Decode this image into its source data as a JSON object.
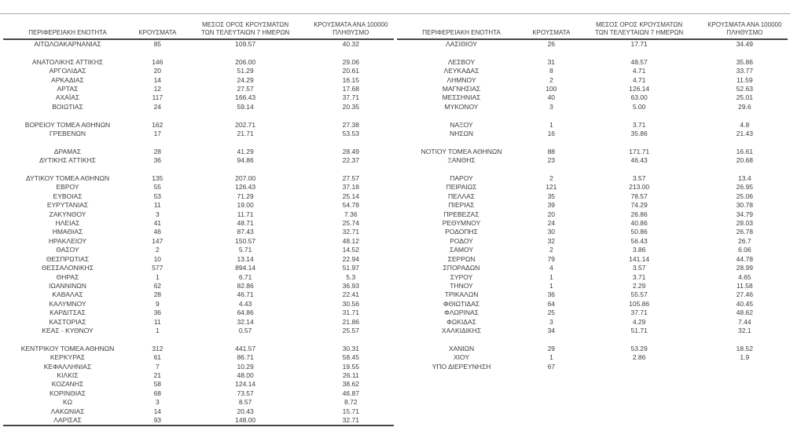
{
  "page": {
    "background": "#ffffff",
    "text_color": "#3d3d3d",
    "rule_color": "#454545",
    "top_rule_color": "#a6a6a6"
  },
  "columns": [
    {
      "key": "region",
      "label": "ΠΕΡΙΦΕΡΕΙΑΚΗ ΕΝΟΤΗΤΑ"
    },
    {
      "key": "cases",
      "label": "ΚΡΟΥΣΜΑΤΑ"
    },
    {
      "key": "avg7",
      "label": "ΜΕΣΟΣ ΟΡΟΣ ΚΡΟΥΣΜΑΤΩΝ\nΤΩΝ ΤΕΛΕΥΤΑΙΩΝ 7 ΗΜΕΡΩΝ"
    },
    {
      "key": "per100k",
      "label": "ΚΡΟΥΣΜΑΤΑ ΑΝΑ 100000\nΠΛΗΘΥΣΜΟ"
    }
  ],
  "tables": [
    {
      "rows": [
        {
          "name": "ΑΙΤΩΛΟΑΚΑΡΝΑΝΙΑΣ",
          "cases": "85",
          "avg7": "109.57",
          "per100k": "40.32",
          "spacer_after": true
        },
        {
          "name": "ΑΝΑΤΟΛΙΚΗΣ ΑΤΤΙΚΗΣ",
          "cases": "146",
          "avg7": "206.00",
          "per100k": "29.06",
          "spacer_after": false
        },
        {
          "name": "ΑΡΓΟΛΙΔΑΣ",
          "cases": "20",
          "avg7": "51.29",
          "per100k": "20.61",
          "spacer_after": false
        },
        {
          "name": "ΑΡΚΑΔΙΑΣ",
          "cases": "14",
          "avg7": "24.29",
          "per100k": "16.15",
          "spacer_after": false
        },
        {
          "name": "ΑΡΤΑΣ",
          "cases": "12",
          "avg7": "27.57",
          "per100k": "17.68",
          "spacer_after": false
        },
        {
          "name": "ΑΧΑΪΑΣ",
          "cases": "117",
          "avg7": "166.43",
          "per100k": "37.71",
          "spacer_after": false
        },
        {
          "name": "ΒΟΙΩΤΙΑΣ",
          "cases": "24",
          "avg7": "59.14",
          "per100k": "20.35",
          "spacer_after": true
        },
        {
          "name": "ΒΟΡΕΙΟΥ ΤΟΜΕΑ ΑΘΗΝΩΝ",
          "cases": "162",
          "avg7": "202.71",
          "per100k": "27.38",
          "spacer_after": false
        },
        {
          "name": "ΓΡΕΒΕΝΩΝ",
          "cases": "17",
          "avg7": "21.71",
          "per100k": "53.53",
          "spacer_after": true
        },
        {
          "name": "ΔΡΑΜΑΣ",
          "cases": "28",
          "avg7": "41.29",
          "per100k": "28.49",
          "spacer_after": false
        },
        {
          "name": "ΔΥΤΙΚΗΣ ΑΤΤΙΚΗΣ",
          "cases": "36",
          "avg7": "94.86",
          "per100k": "22.37",
          "spacer_after": true
        },
        {
          "name": "ΔΥΤΙΚΟΥ ΤΟΜΕΑ ΑΘΗΝΩΝ",
          "cases": "135",
          "avg7": "207.00",
          "per100k": "27.57",
          "spacer_after": false
        },
        {
          "name": "ΕΒΡΟΥ",
          "cases": "55",
          "avg7": "126.43",
          "per100k": "37.18",
          "spacer_after": false
        },
        {
          "name": "ΕΥΒΟΙΑΣ",
          "cases": "53",
          "avg7": "71.29",
          "per100k": "25.14",
          "spacer_after": false
        },
        {
          "name": "ΕΥΡΥΤΑΝΙΑΣ",
          "cases": "11",
          "avg7": "19.00",
          "per100k": "54.78",
          "spacer_after": false
        },
        {
          "name": "ΖΑΚΥΝΘΟΥ",
          "cases": "3",
          "avg7": "11.71",
          "per100k": "7.36",
          "spacer_after": false
        },
        {
          "name": "ΗΛΕΙΑΣ",
          "cases": "41",
          "avg7": "48.71",
          "per100k": "25.74",
          "spacer_after": false
        },
        {
          "name": "ΗΜΑΘΙΑΣ",
          "cases": "46",
          "avg7": "87.43",
          "per100k": "32.71",
          "spacer_after": false
        },
        {
          "name": "ΗΡΑΚΛΕΙΟΥ",
          "cases": "147",
          "avg7": "150.57",
          "per100k": "48.12",
          "spacer_after": false
        },
        {
          "name": "ΘΑΣΟΥ",
          "cases": "2",
          "avg7": "5.71",
          "per100k": "14.52",
          "spacer_after": false
        },
        {
          "name": "ΘΕΣΠΡΩΤΙΑΣ",
          "cases": "10",
          "avg7": "13.14",
          "per100k": "22.94",
          "spacer_after": false
        },
        {
          "name": "ΘΕΣΣΑΛΟΝΙΚΗΣ",
          "cases": "577",
          "avg7": "894.14",
          "per100k": "51.97",
          "spacer_after": false
        },
        {
          "name": "ΘΗΡΑΣ",
          "cases": "1",
          "avg7": "6.71",
          "per100k": "5.3",
          "spacer_after": false
        },
        {
          "name": "ΙΩΑΝΝΙΝΩΝ",
          "cases": "62",
          "avg7": "82.86",
          "per100k": "36.93",
          "spacer_after": false
        },
        {
          "name": "ΚΑΒΑΛΑΣ",
          "cases": "28",
          "avg7": "46.71",
          "per100k": "22.41",
          "spacer_after": false
        },
        {
          "name": "ΚΑΛΥΜΝΟΥ",
          "cases": "9",
          "avg7": "4.43",
          "per100k": "30.56",
          "spacer_after": false
        },
        {
          "name": "ΚΑΡΔΙΤΣΑΣ",
          "cases": "36",
          "avg7": "64.86",
          "per100k": "31.71",
          "spacer_after": false
        },
        {
          "name": "ΚΑΣΤΟΡΙΑΣ",
          "cases": "11",
          "avg7": "32.14",
          "per100k": "21.86",
          "spacer_after": false
        },
        {
          "name": "ΚΕΑΣ - ΚΥΘΝΟΥ",
          "cases": "1",
          "avg7": "0.57",
          "per100k": "25.57",
          "spacer_after": true
        },
        {
          "name": "ΚΕΝΤΡΙΚΟΥ ΤΟΜΕΑ ΑΘΗΝΩΝ",
          "cases": "312",
          "avg7": "441.57",
          "per100k": "30.31",
          "spacer_after": false
        },
        {
          "name": "ΚΕΡΚΥΡΑΣ",
          "cases": "61",
          "avg7": "86.71",
          "per100k": "58.45",
          "spacer_after": false
        },
        {
          "name": "ΚΕΦΑΛΛΗΝΙΑΣ",
          "cases": "7",
          "avg7": "10.29",
          "per100k": "19.55",
          "spacer_after": false
        },
        {
          "name": "ΚΙΛΚΙΣ",
          "cases": "21",
          "avg7": "48.00",
          "per100k": "26.11",
          "spacer_after": false
        },
        {
          "name": "ΚΟΖΑΝΗΣ",
          "cases": "58",
          "avg7": "124.14",
          "per100k": "38.62",
          "spacer_after": false
        },
        {
          "name": "ΚΟΡΙΝΘΙΑΣ",
          "cases": "68",
          "avg7": "73.57",
          "per100k": "46.87",
          "spacer_after": false
        },
        {
          "name": "ΚΩ",
          "cases": "3",
          "avg7": "8.57",
          "per100k": "8.72",
          "spacer_after": false
        },
        {
          "name": "ΛΑΚΩΝΙΑΣ",
          "cases": "14",
          "avg7": "20.43",
          "per100k": "15.71",
          "spacer_after": false
        },
        {
          "name": "ΛΑΡΙΣΑΣ",
          "cases": "93",
          "avg7": "148.00",
          "per100k": "32.71",
          "spacer_after": false
        }
      ]
    },
    {
      "rows": [
        {
          "name": "ΛΑΣΙΘΙΟΥ",
          "cases": "26",
          "avg7": "17.71",
          "per100k": "34.49",
          "spacer_after": true
        },
        {
          "name": "ΛΕΣΒΟΥ",
          "cases": "31",
          "avg7": "48.57",
          "per100k": "35.86",
          "spacer_after": false
        },
        {
          "name": "ΛΕΥΚΑΔΑΣ",
          "cases": "8",
          "avg7": "4.71",
          "per100k": "33.77",
          "spacer_after": false
        },
        {
          "name": "ΛΗΜΝΟΥ",
          "cases": "2",
          "avg7": "4.71",
          "per100k": "11.59",
          "spacer_after": false
        },
        {
          "name": "ΜΑΓΝΗΣΙΑΣ",
          "cases": "100",
          "avg7": "126.14",
          "per100k": "52.63",
          "spacer_after": false
        },
        {
          "name": "ΜΕΣΣΗΝΙΑΣ",
          "cases": "40",
          "avg7": "63.00",
          "per100k": "25.01",
          "spacer_after": false
        },
        {
          "name": "ΜΥΚΟΝΟΥ",
          "cases": "3",
          "avg7": "5.00",
          "per100k": "29.6",
          "spacer_after": true
        },
        {
          "name": "ΝΑΞΟΥ",
          "cases": "1",
          "avg7": "3.71",
          "per100k": "4.8",
          "spacer_after": false
        },
        {
          "name": "ΝΗΣΩΝ",
          "cases": "16",
          "avg7": "35.86",
          "per100k": "21.43",
          "spacer_after": true
        },
        {
          "name": "ΝΟΤΙΟΥ ΤΟΜΕΑ ΑΘΗΝΩΝ",
          "cases": "88",
          "avg7": "171.71",
          "per100k": "16.61",
          "spacer_after": false
        },
        {
          "name": "ΞΑΝΘΗΣ",
          "cases": "23",
          "avg7": "46.43",
          "per100k": "20.68",
          "spacer_after": true
        },
        {
          "name": "ΠΑΡΟΥ",
          "cases": "2",
          "avg7": "3.57",
          "per100k": "13.4",
          "spacer_after": false
        },
        {
          "name": "ΠΕΙΡΑΙΩΣ",
          "cases": "121",
          "avg7": "213.00",
          "per100k": "26.95",
          "spacer_after": false
        },
        {
          "name": "ΠΕΛΛΑΣ",
          "cases": "35",
          "avg7": "78.57",
          "per100k": "25.06",
          "spacer_after": false
        },
        {
          "name": "ΠΙΕΡΙΑΣ",
          "cases": "39",
          "avg7": "74.29",
          "per100k": "30.78",
          "spacer_after": false
        },
        {
          "name": "ΠΡΕΒΕΖΑΣ",
          "cases": "20",
          "avg7": "26.86",
          "per100k": "34.79",
          "spacer_after": false
        },
        {
          "name": "ΡΕΘΥΜΝΟΥ",
          "cases": "24",
          "avg7": "40.86",
          "per100k": "28.03",
          "spacer_after": false
        },
        {
          "name": "ΡΟΔΟΠΗΣ",
          "cases": "30",
          "avg7": "50.86",
          "per100k": "26.78",
          "spacer_after": false
        },
        {
          "name": "ΡΟΔΟΥ",
          "cases": "32",
          "avg7": "56.43",
          "per100k": "26.7",
          "spacer_after": false
        },
        {
          "name": "ΣΑΜΟΥ",
          "cases": "2",
          "avg7": "3.86",
          "per100k": "6.06",
          "spacer_after": false
        },
        {
          "name": "ΣΕΡΡΩΝ",
          "cases": "79",
          "avg7": "141.14",
          "per100k": "44.78",
          "spacer_after": false
        },
        {
          "name": "ΣΠΟΡΑΔΩΝ",
          "cases": "4",
          "avg7": "3.57",
          "per100k": "28.99",
          "spacer_after": false
        },
        {
          "name": "ΣΥΡΟΥ",
          "cases": "1",
          "avg7": "3.71",
          "per100k": "4.65",
          "spacer_after": false
        },
        {
          "name": "ΤΗΝΟΥ",
          "cases": "1",
          "avg7": "2.29",
          "per100k": "11.58",
          "spacer_after": false
        },
        {
          "name": "ΤΡΙΚΑΛΩΝ",
          "cases": "36",
          "avg7": "55.57",
          "per100k": "27.46",
          "spacer_after": false
        },
        {
          "name": "ΦΘΙΩΤΙΔΑΣ",
          "cases": "64",
          "avg7": "105.86",
          "per100k": "40.45",
          "spacer_after": false
        },
        {
          "name": "ΦΛΩΡΙΝΑΣ",
          "cases": "25",
          "avg7": "37.71",
          "per100k": "48.62",
          "spacer_after": false
        },
        {
          "name": "ΦΩΚΙΔΑΣ",
          "cases": "3",
          "avg7": "4.29",
          "per100k": "7.44",
          "spacer_after": false
        },
        {
          "name": "ΧΑΛΚΙΔΙΚΗΣ",
          "cases": "34",
          "avg7": "51.71",
          "per100k": "32.1",
          "spacer_after": true
        },
        {
          "name": "ΧΑΝΙΩΝ",
          "cases": "29",
          "avg7": "53.29",
          "per100k": "18.52",
          "spacer_after": false
        },
        {
          "name": "ΧΙΟΥ",
          "cases": "1",
          "avg7": "2.86",
          "per100k": "1.9",
          "spacer_after": false
        },
        {
          "name": "ΥΠΟ ΔΙΕΡΕΥΝΗΣΗ",
          "cases": "67",
          "avg7": "",
          "per100k": "",
          "spacer_after": false
        }
      ]
    }
  ]
}
